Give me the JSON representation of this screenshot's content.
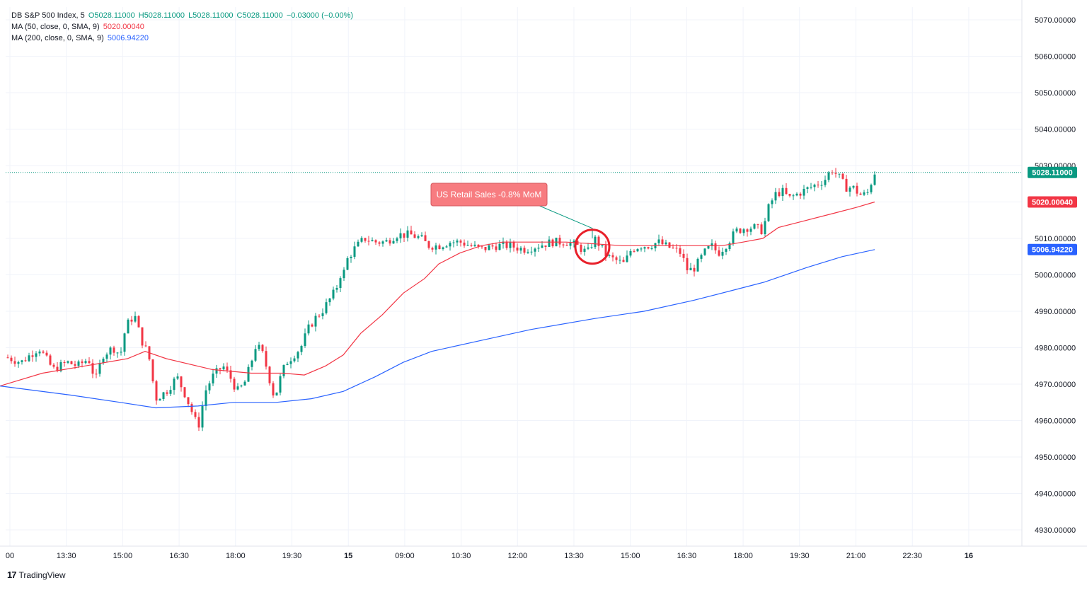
{
  "legend": {
    "symbol": "DB S&P 500 Index, 5",
    "open": "O5028.11000",
    "high": "H5028.11000",
    "low": "L5028.11000",
    "close": "C5028.11000",
    "change": "−0.03000 (−0.00%)",
    "ma50_label": "MA (50, close, 0, SMA, 9)",
    "ma50_value": "5020.00040",
    "ma200_label": "MA (200, close, 0, SMA, 9)",
    "ma200_value": "5006.94220"
  },
  "brand": {
    "name": "TradingView",
    "mark": "17"
  },
  "colors": {
    "up": "#089981",
    "down": "#f23645",
    "ma50": "#f23645",
    "ma200": "#2962ff",
    "annotation": "#f77c80",
    "grid": "#f0f3fa",
    "axis_text": "#131722"
  },
  "chart_data": {
    "type": "candlestick",
    "title": "DB S&P 500 Index, 5",
    "ylim": [
      4923,
      5076
    ],
    "y_ticks": [
      "5070.00000",
      "5060.00000",
      "5050.00000",
      "5040.00000",
      "5030.00000",
      "5020.00000",
      "5010.00000",
      "5000.00000",
      "4990.00000",
      "4980.00000",
      "4970.00000",
      "4960.00000",
      "4950.00000",
      "4940.00000",
      "4930.00000"
    ],
    "x_ticks": [
      "00",
      "13:30",
      "15:00",
      "16:30",
      "18:00",
      "19:30",
      "15",
      "09:00",
      "10:30",
      "12:00",
      "13:30",
      "15:00",
      "16:30",
      "18:00",
      "19:30",
      "21:00",
      "22:30",
      "16"
    ],
    "price_path": [
      [
        0,
        4978
      ],
      [
        30,
        4976
      ],
      [
        55,
        4980
      ],
      [
        75,
        4974
      ],
      [
        95,
        4976
      ],
      [
        110,
        4975
      ],
      [
        125,
        4977
      ],
      [
        135,
        4971
      ],
      [
        145,
        4978
      ],
      [
        160,
        4980
      ],
      [
        170,
        4978
      ],
      [
        178,
        4986
      ],
      [
        190,
        4989
      ],
      [
        200,
        4982
      ],
      [
        210,
        4978
      ],
      [
        220,
        4966
      ],
      [
        235,
        4968
      ],
      [
        250,
        4972
      ],
      [
        262,
        4967
      ],
      [
        272,
        4962
      ],
      [
        280,
        4958
      ],
      [
        290,
        4968
      ],
      [
        300,
        4972
      ],
      [
        315,
        4975
      ],
      [
        325,
        4972
      ],
      [
        335,
        4968
      ],
      [
        345,
        4970
      ],
      [
        355,
        4976
      ],
      [
        362,
        4981
      ],
      [
        372,
        4978
      ],
      [
        380,
        4972
      ],
      [
        388,
        4966
      ],
      [
        398,
        4973
      ],
      [
        405,
        4976
      ],
      [
        415,
        4978
      ],
      [
        425,
        4980
      ],
      [
        435,
        4985
      ],
      [
        445,
        4988
      ],
      [
        455,
        4990
      ],
      [
        465,
        4993
      ],
      [
        475,
        4996
      ],
      [
        480,
        5000
      ],
      [
        485,
        5000
      ],
      [
        490,
        5004
      ],
      [
        500,
        5007
      ],
      [
        515,
        5010
      ],
      [
        530,
        5009
      ],
      [
        545,
        5009
      ],
      [
        560,
        5011
      ],
      [
        580,
        5011
      ],
      [
        595,
        5010
      ],
      [
        605,
        5008
      ],
      [
        620,
        5008
      ],
      [
        635,
        5009
      ],
      [
        650,
        5009
      ],
      [
        665,
        5008
      ],
      [
        680,
        5007
      ],
      [
        700,
        5008
      ],
      [
        720,
        5008
      ],
      [
        740,
        5007
      ],
      [
        760,
        5008
      ],
      [
        780,
        5009
      ],
      [
        800,
        5009
      ],
      [
        815,
        5008
      ],
      [
        830,
        5006
      ],
      [
        840,
        5010
      ],
      [
        848,
        5008
      ],
      [
        858,
        5005
      ],
      [
        870,
        5004
      ],
      [
        882,
        5003
      ],
      [
        892,
        5007
      ],
      [
        905,
        5008
      ],
      [
        918,
        5008
      ],
      [
        930,
        5009
      ],
      [
        940,
        5008
      ],
      [
        952,
        5007
      ],
      [
        962,
        5006
      ],
      [
        972,
        5001
      ],
      [
        982,
        5002
      ],
      [
        995,
        5006
      ],
      [
        1005,
        5008
      ],
      [
        1015,
        5006
      ],
      [
        1025,
        5008
      ],
      [
        1040,
        5012
      ],
      [
        1055,
        5013
      ],
      [
        1068,
        5013
      ],
      [
        1078,
        5012
      ],
      [
        1085,
        5018
      ],
      [
        1095,
        5022
      ],
      [
        1105,
        5023
      ],
      [
        1115,
        5021
      ],
      [
        1125,
        5022
      ],
      [
        1135,
        5023
      ],
      [
        1145,
        5024
      ],
      [
        1155,
        5025
      ],
      [
        1165,
        5026
      ],
      [
        1175,
        5029
      ],
      [
        1185,
        5027
      ],
      [
        1195,
        5024
      ],
      [
        1205,
        5024
      ],
      [
        1215,
        5022
      ],
      [
        1225,
        5022
      ],
      [
        1236,
        5028.11
      ]
    ],
    "ma50": [
      [
        0,
        4969.5
      ],
      [
        60,
        4973
      ],
      [
        120,
        4975
      ],
      [
        180,
        4977
      ],
      [
        205,
        4979
      ],
      [
        235,
        4977
      ],
      [
        300,
        4974
      ],
      [
        355,
        4973
      ],
      [
        400,
        4973
      ],
      [
        430,
        4972.5
      ],
      [
        460,
        4975
      ],
      [
        485,
        4978
      ],
      [
        510,
        4984
      ],
      [
        540,
        4989
      ],
      [
        570,
        4995
      ],
      [
        600,
        4999
      ],
      [
        620,
        5003
      ],
      [
        650,
        5006
      ],
      [
        680,
        5008
      ],
      [
        710,
        5009
      ],
      [
        760,
        5009
      ],
      [
        800,
        5009
      ],
      [
        840,
        5008.5
      ],
      [
        880,
        5008
      ],
      [
        930,
        5008
      ],
      [
        980,
        5008
      ],
      [
        1020,
        5008
      ],
      [
        1050,
        5009
      ],
      [
        1078,
        5010
      ],
      [
        1100,
        5013
      ],
      [
        1140,
        5015
      ],
      [
        1180,
        5017
      ],
      [
        1210,
        5018.5
      ],
      [
        1236,
        5020
      ]
    ],
    "ma200": [
      [
        0,
        4969.5
      ],
      [
        100,
        4967
      ],
      [
        170,
        4965
      ],
      [
        220,
        4963.5
      ],
      [
        280,
        4964
      ],
      [
        330,
        4965
      ],
      [
        390,
        4965
      ],
      [
        440,
        4966
      ],
      [
        485,
        4968
      ],
      [
        530,
        4972
      ],
      [
        570,
        4976
      ],
      [
        610,
        4979
      ],
      [
        680,
        4982
      ],
      [
        750,
        4985
      ],
      [
        840,
        4988
      ],
      [
        910,
        4990
      ],
      [
        980,
        4993
      ],
      [
        1060,
        4997
      ],
      [
        1080,
        4998
      ],
      [
        1140,
        5002
      ],
      [
        1190,
        5005
      ],
      [
        1236,
        5006.94
      ]
    ],
    "last_price_label": "5028.11000",
    "ma50_label": "5020.00040",
    "ma200_label": "5006.94220",
    "annotation": {
      "text": "US Retail Sales -0.8% MoM",
      "x": 837,
      "price": 5012
    }
  }
}
